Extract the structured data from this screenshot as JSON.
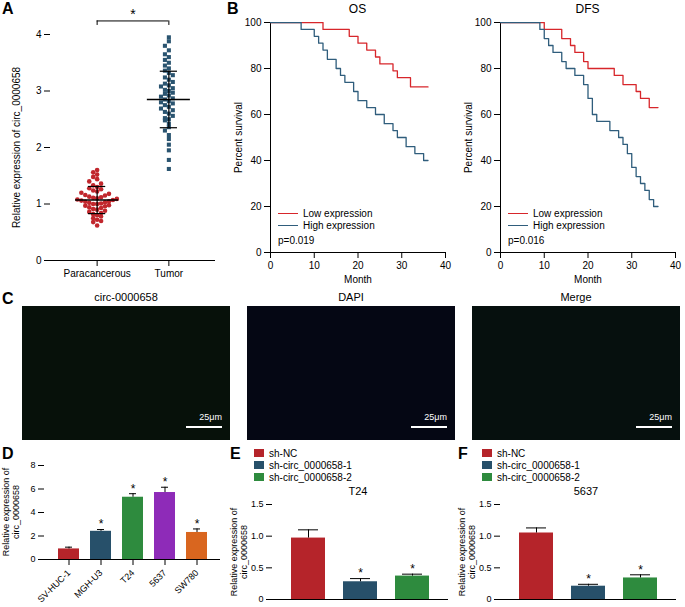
{
  "chart_data": [
    {
      "type": "scatter",
      "panel": "A",
      "ylabel": "Relative expression of circ_0000658",
      "categories": [
        "Paracancerous",
        "Tumor"
      ],
      "groups": [
        {
          "color": "#c1272d",
          "marker": "circle",
          "mean": 1.07,
          "sd": 0.24,
          "values": [
            0.62,
            0.68,
            0.72,
            0.75,
            0.78,
            0.8,
            0.82,
            0.84,
            0.86,
            0.88,
            0.9,
            0.91,
            0.93,
            0.94,
            0.96,
            0.97,
            0.98,
            1.0,
            1.01,
            1.02,
            1.03,
            1.04,
            1.05,
            1.06,
            1.07,
            1.08,
            1.09,
            1.1,
            1.11,
            1.12,
            1.13,
            1.15,
            1.16,
            1.18,
            1.2,
            1.22,
            1.24,
            1.26,
            1.28,
            1.3,
            1.33,
            1.36,
            1.4,
            1.44,
            1.48,
            1.52,
            1.56,
            1.6,
            0.7,
            1.0
          ]
        },
        {
          "color": "#2a5470",
          "marker": "square",
          "mean": 2.85,
          "sd": 0.5,
          "values": [
            1.62,
            1.78,
            1.95,
            2.05,
            2.15,
            2.22,
            2.3,
            2.36,
            2.42,
            2.48,
            2.52,
            2.56,
            2.6,
            2.63,
            2.66,
            2.69,
            2.72,
            2.75,
            2.78,
            2.8,
            2.82,
            2.85,
            2.87,
            2.9,
            2.92,
            2.95,
            2.97,
            3.0,
            3.02,
            3.05,
            3.08,
            3.1,
            3.13,
            3.16,
            3.2,
            3.24,
            3.28,
            3.32,
            3.36,
            3.4,
            3.45,
            3.5,
            3.55,
            3.6,
            3.65,
            3.72,
            3.8,
            3.88,
            3.95,
            2.5
          ]
        }
      ],
      "ylim": [
        0,
        4
      ],
      "yticks": [
        0,
        1,
        2,
        3,
        4
      ],
      "annotations": [
        "*"
      ]
    },
    {
      "type": "line",
      "panel": "B",
      "title": "OS",
      "xlabel": "Month",
      "ylabel": "Percent survival",
      "xlim": [
        0,
        40
      ],
      "xticks": [
        0,
        10,
        20,
        30,
        40
      ],
      "ylim": [
        0,
        100
      ],
      "yticks": [
        0,
        20,
        40,
        60,
        80,
        100
      ],
      "line_style": "step",
      "legend": "bottom-left",
      "annotations": [
        "p=0.019"
      ],
      "series": [
        {
          "name": "Low expression",
          "color": "#d7262b",
          "x": [
            0,
            12,
            18,
            20,
            22,
            24,
            25,
            28,
            29,
            32,
            36
          ],
          "values": [
            100,
            97,
            94,
            91,
            88,
            85,
            82,
            79,
            76,
            72,
            72
          ]
        },
        {
          "name": "High expression",
          "color": "#2f5d7c",
          "x": [
            0,
            7,
            10,
            11,
            12,
            13,
            15,
            16,
            17,
            19,
            20,
            22,
            24,
            26,
            28,
            29,
            31,
            33,
            35,
            36
          ],
          "values": [
            100,
            97,
            94,
            91,
            88,
            84,
            80,
            77,
            74,
            70,
            66,
            63,
            60,
            56,
            53,
            50,
            46,
            43,
            40,
            40
          ]
        }
      ]
    },
    {
      "type": "line",
      "title": "DFS",
      "xlabel": "Month",
      "ylabel": "Percent survival",
      "xlim": [
        0,
        40
      ],
      "xticks": [
        0,
        10,
        20,
        30,
        40
      ],
      "ylim": [
        0,
        100
      ],
      "yticks": [
        0,
        20,
        40,
        60,
        80,
        100
      ],
      "line_style": "step",
      "legend": "bottom-left",
      "annotations": [
        "p=0.016"
      ],
      "series": [
        {
          "name": "Low expression",
          "color": "#d7262b",
          "x": [
            0,
            10,
            14,
            16,
            17,
            19,
            20,
            26,
            28,
            31,
            32,
            34,
            36
          ],
          "values": [
            100,
            97,
            93,
            90,
            87,
            83,
            80,
            77,
            73,
            70,
            67,
            63,
            63
          ]
        },
        {
          "name": "High expression",
          "color": "#2f5d7c",
          "x": [
            0,
            9,
            10,
            11,
            12,
            14,
            15,
            17,
            19,
            20,
            21,
            22,
            25,
            27,
            28,
            29,
            30,
            31,
            32,
            33,
            34,
            35,
            36
          ],
          "values": [
            100,
            97,
            93,
            90,
            87,
            83,
            80,
            77,
            73,
            67,
            60,
            57,
            53,
            50,
            47,
            43,
            37,
            33,
            30,
            27,
            23,
            20,
            20
          ]
        }
      ]
    },
    {
      "type": "image",
      "panel": "C",
      "images": [
        {
          "title": "circ-0000658",
          "scale_bar": "25μm"
        },
        {
          "title": "DAPI",
          "scale_bar": "25μm"
        },
        {
          "title": "Merge",
          "scale_bar": "25μm"
        }
      ]
    },
    {
      "type": "bar",
      "panel": "D",
      "ylabel": "Relative expression of circ_0000658",
      "categories": [
        "SV-HUC-1",
        "MGH-U3",
        "T24",
        "5637",
        "SW780"
      ],
      "values": [
        0.9,
        2.4,
        5.3,
        5.7,
        2.3
      ],
      "errors": [
        0.15,
        0.15,
        0.3,
        0.45,
        0.3
      ],
      "colors": [
        "#b5242a",
        "#27506a",
        "#2e8b3e",
        "#8e2bb8",
        "#d9661f"
      ],
      "significance": [
        null,
        "*",
        "*",
        "*",
        "*"
      ],
      "ylim": [
        0,
        8
      ],
      "yticks": [
        0,
        2,
        4,
        6,
        8
      ]
    },
    {
      "type": "bar",
      "panel": "E",
      "title": "T24",
      "ylabel": "Relative expression of circ_0000658",
      "categories": [
        "sh-NC",
        "sh-circ_0000658-1",
        "sh-circ_0000658-2"
      ],
      "values": [
        0.97,
        0.28,
        0.37
      ],
      "errors": [
        0.13,
        0.05,
        0.03
      ],
      "colors": [
        "#b5242a",
        "#27506a",
        "#2e8b3e"
      ],
      "significance": [
        null,
        "*",
        "*"
      ],
      "ylim": [
        0,
        1.5
      ],
      "yticks": [
        0,
        0.5,
        {
          "value": 1,
          "label": "1.0"
        },
        1.5
      ],
      "legend": "top-left",
      "tick_labels": "y"
    },
    {
      "type": "bar",
      "panel": "F",
      "title": "5637",
      "ylabel": "Relative expression of circ_0000658",
      "categories": [
        "sh-NC",
        "sh-circ_0000658-1",
        "sh-circ_0000658-2"
      ],
      "values": [
        1.05,
        0.21,
        0.34
      ],
      "errors": [
        0.08,
        0.03,
        0.05
      ],
      "colors": [
        "#b5242a",
        "#27506a",
        "#2e8b3e"
      ],
      "significance": [
        null,
        "*",
        "*"
      ],
      "ylim": [
        0,
        1.5
      ],
      "yticks": [
        0,
        0.5,
        {
          "value": 1,
          "label": "1.0"
        },
        1.5
      ],
      "legend": "top-left",
      "tick_labels": "y"
    }
  ]
}
